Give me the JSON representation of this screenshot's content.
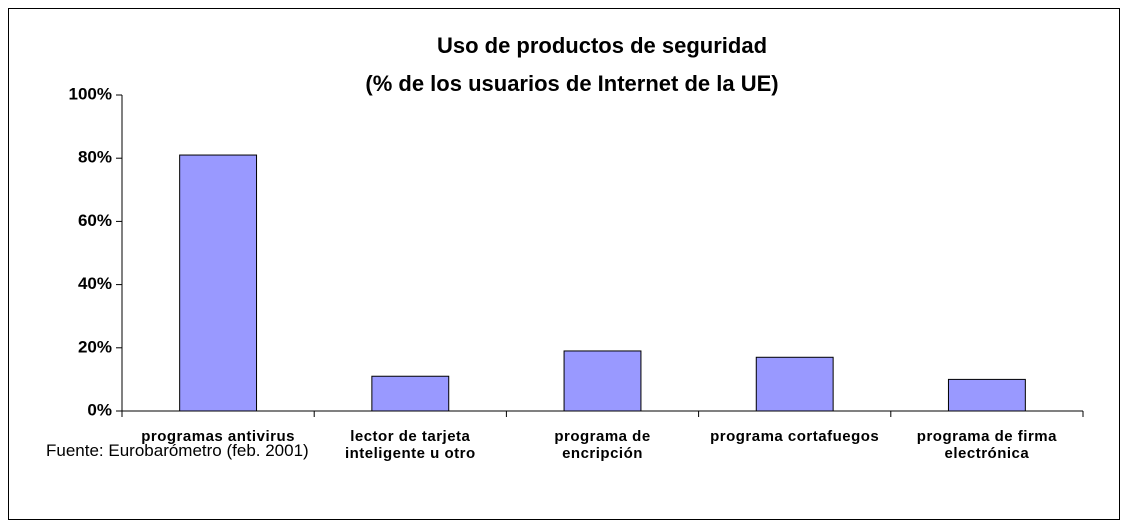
{
  "chart_data": {
    "type": "bar",
    "title": "Uso de productos de seguridad",
    "subtitle": "(% de los usuarios de Internet de la UE)",
    "categories": [
      "programas antivirus",
      "lector de tarjeta inteligente u otro",
      "programa de encripción",
      "programa cortafuegos",
      "programa de firma electrónica"
    ],
    "values": [
      81,
      11,
      19,
      17,
      10
    ],
    "color": "#9999ff",
    "ylim": [
      0,
      100
    ],
    "yticks": [
      {
        "value": 0,
        "label": "0%"
      },
      {
        "value": 20,
        "label": "20%"
      },
      {
        "value": 40,
        "label": "40%"
      },
      {
        "value": 60,
        "label": "60%"
      },
      {
        "value": 80,
        "label": "80%"
      },
      {
        "value": 100,
        "label": "100%"
      }
    ],
    "grid": false,
    "source": "Fuente: Eurobarómetro (feb. 2001)"
  }
}
